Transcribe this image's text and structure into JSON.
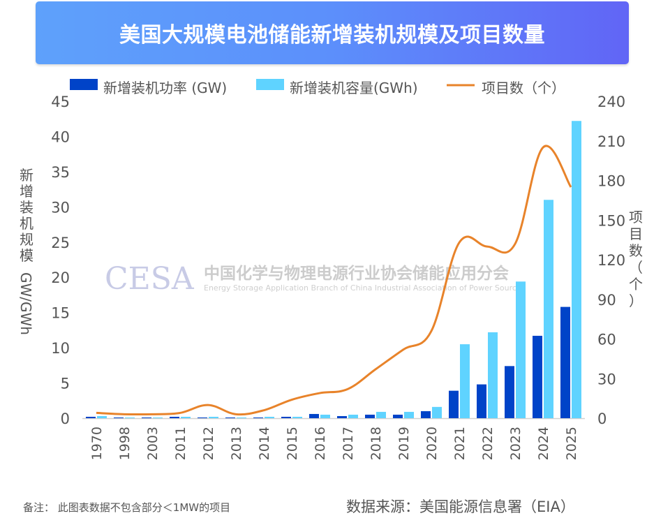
{
  "header": {
    "title": "美国大规模电池储能新增装机规模及项目数量"
  },
  "footer": {
    "note": "备注： 此图表数据不包含部分＜1MW的项目",
    "source": "数据来源：美国能源信息署（EIA）"
  },
  "watermark": {
    "logo": "CESA",
    "cn": "中国化学与物理电源行业协会储能应用分会",
    "en": "Energy Storage Application Branch of China Industrial Association of Power Sources"
  },
  "colors": {
    "power": "#0043c8",
    "capacity": "#5fd3ff",
    "projects": "#e8832a",
    "axis": "#d0d0d0"
  },
  "chart_data": {
    "type": "bar",
    "title": "美国大规模电池储能新增装机规模及项目数量",
    "categories": [
      "1970",
      "1998",
      "2003",
      "2011",
      "2012",
      "2013",
      "2014",
      "2015",
      "2016",
      "2017",
      "2018",
      "2019",
      "2020",
      "2021",
      "2022",
      "2023",
      "2024",
      "2025"
    ],
    "series": [
      {
        "name": "新增装机功率 (GW)",
        "type": "bar",
        "axis": "left",
        "values": [
          0.2,
          0.1,
          0.1,
          0.2,
          0.1,
          0.1,
          0.1,
          0.2,
          0.6,
          0.3,
          0.5,
          0.5,
          1.0,
          3.9,
          4.8,
          7.4,
          11.7,
          15.8
        ]
      },
      {
        "name": "新增装机容量(GWh)",
        "type": "bar",
        "axis": "left",
        "values": [
          0.3,
          0.1,
          0.1,
          0.2,
          0.2,
          0.1,
          0.2,
          0.2,
          0.5,
          0.5,
          0.9,
          0.9,
          1.6,
          10.5,
          12.2,
          19.4,
          31.0,
          42.2
        ]
      },
      {
        "name": "项目数（个）",
        "type": "line",
        "axis": "right",
        "values": [
          4,
          3,
          3,
          4,
          10,
          3,
          6,
          14,
          19,
          22,
          37,
          52,
          66,
          133,
          130,
          132,
          205,
          175
        ]
      }
    ],
    "ylabel": "新增装机规模GW/GWh",
    "y2label": "项目数（个）",
    "ylim": [
      0,
      45
    ],
    "yticks": [
      "0",
      "5",
      "10",
      "15",
      "20",
      "25",
      "30",
      "35",
      "40",
      "45"
    ],
    "y2lim": [
      0,
      240
    ],
    "y2ticks": [
      "0",
      "30",
      "60",
      "90",
      "120",
      "150",
      "180",
      "210",
      "240"
    ],
    "grid": false,
    "legend": "top"
  }
}
